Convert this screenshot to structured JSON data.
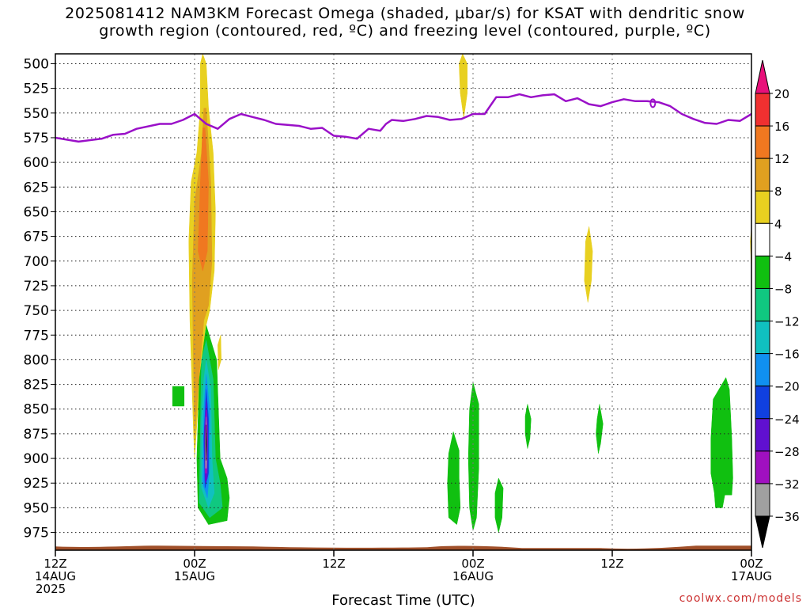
{
  "chart_data": {
    "type": "heatmap",
    "title_lines": [
      "2025081412 NAM3KM Forecast Omega (shaded, μbar/s) for KSAT with dendritic snow",
      "growth region (contoured, red, ºC) and freezing level (contoured, purple, ºC)"
    ],
    "xlabel": "Forecast Time (UTC)",
    "x_ticks": [
      {
        "t": 0,
        "lines": [
          "12Z",
          "14AUG",
          "2025"
        ]
      },
      {
        "t": 12,
        "lines": [
          "00Z",
          "15AUG"
        ]
      },
      {
        "t": 24,
        "lines": [
          "12Z"
        ]
      },
      {
        "t": 36,
        "lines": [
          "00Z",
          "16AUG"
        ]
      },
      {
        "t": 48,
        "lines": [
          "12Z"
        ]
      },
      {
        "t": 60,
        "lines": [
          "00Z",
          "17AUG"
        ]
      }
    ],
    "xlim": [
      0,
      60
    ],
    "x_units": "hours from 2025-08-14 12Z",
    "y_ticks": [
      500,
      525,
      550,
      575,
      600,
      625,
      650,
      675,
      700,
      725,
      750,
      775,
      800,
      825,
      850,
      875,
      900,
      925,
      950,
      975
    ],
    "ylim": [
      490,
      993
    ],
    "y_units": "hPa",
    "grid": "dotted",
    "colorbar": {
      "labels": [
        "20",
        "16",
        "12",
        "8",
        "4",
        "−4",
        "−8",
        "−12",
        "−16",
        "−20",
        "−24",
        "−28",
        "−32",
        "−36"
      ],
      "colors": [
        "#e8107a",
        "#f03030",
        "#f07820",
        "#e0a020",
        "#e8d020",
        "#ffffff",
        "#10c010",
        "#10c880",
        "#10c0c0",
        "#1090f0",
        "#1040e0",
        "#6010d0",
        "#a010c0",
        "#a0a0a0",
        "#000000"
      ]
    },
    "freezing_level": {
      "color": "#9a10c8",
      "points": [
        [
          0,
          575
        ],
        [
          2,
          579
        ],
        [
          4,
          576
        ],
        [
          5,
          572
        ],
        [
          6,
          571
        ],
        [
          7,
          566
        ],
        [
          9,
          561
        ],
        [
          10,
          561
        ],
        [
          11,
          557
        ],
        [
          12,
          551
        ],
        [
          13,
          561
        ],
        [
          14,
          566
        ],
        [
          15,
          556
        ],
        [
          16,
          551
        ],
        [
          17,
          554
        ],
        [
          18,
          557
        ],
        [
          19,
          561
        ],
        [
          21,
          563
        ],
        [
          22,
          566
        ],
        [
          23,
          565
        ],
        [
          24,
          573
        ],
        [
          25,
          574
        ],
        [
          26,
          576
        ],
        [
          27,
          566
        ],
        [
          28,
          568
        ],
        [
          28.5,
          561
        ],
        [
          29,
          557
        ],
        [
          30,
          558
        ],
        [
          31,
          556
        ],
        [
          32,
          553
        ],
        [
          33,
          554
        ],
        [
          34,
          557
        ],
        [
          35,
          556
        ],
        [
          36,
          551
        ],
        [
          37,
          551
        ],
        [
          38,
          534
        ],
        [
          39,
          534
        ],
        [
          40,
          531
        ],
        [
          41,
          534
        ],
        [
          42,
          532
        ],
        [
          43,
          531
        ],
        [
          44,
          538
        ],
        [
          45,
          535
        ],
        [
          46,
          541
        ],
        [
          47,
          543
        ],
        [
          48,
          539
        ],
        [
          49,
          536
        ],
        [
          50,
          538
        ],
        [
          51,
          538
        ],
        [
          52,
          539
        ],
        [
          53,
          543
        ],
        [
          54,
          551
        ],
        [
          55,
          556
        ],
        [
          56,
          560
        ],
        [
          57,
          561
        ],
        [
          58,
          557
        ],
        [
          59,
          558
        ],
        [
          60,
          551
        ],
        [
          61,
          548
        ]
      ]
    },
    "omega_regions": [
      {
        "level": "4",
        "color": "#e8d020",
        "points": [
          [
            12.7,
            490
          ],
          [
            13.0,
            500
          ],
          [
            13.2,
            545
          ],
          [
            13.6,
            590
          ],
          [
            13.8,
            650
          ],
          [
            13.7,
            710
          ],
          [
            13.3,
            750
          ],
          [
            12.9,
            770
          ],
          [
            12.4,
            830
          ],
          [
            12.0,
            900
          ],
          [
            11.9,
            870
          ],
          [
            11.6,
            760
          ],
          [
            11.5,
            680
          ],
          [
            11.7,
            620
          ],
          [
            12.2,
            590
          ],
          [
            12.5,
            545
          ],
          [
            12.5,
            500
          ]
        ]
      },
      {
        "level": "8",
        "color": "#e0a020",
        "points": [
          [
            13.0,
            545
          ],
          [
            13.4,
            620
          ],
          [
            13.5,
            700
          ],
          [
            13.2,
            745
          ],
          [
            12.8,
            760
          ],
          [
            12.3,
            830
          ],
          [
            12.0,
            880
          ],
          [
            11.9,
            800
          ],
          [
            11.8,
            720
          ],
          [
            12.0,
            640
          ],
          [
            12.6,
            590
          ],
          [
            12.8,
            545
          ]
        ]
      },
      {
        "level": "12",
        "color": "#f07820",
        "points": [
          [
            12.9,
            565
          ],
          [
            13.2,
            620
          ],
          [
            13.1,
            690
          ],
          [
            12.7,
            710
          ],
          [
            12.3,
            690
          ],
          [
            12.5,
            620
          ],
          [
            12.7,
            565
          ]
        ]
      },
      {
        "level": "4",
        "color": "#e8d020",
        "points": [
          [
            35.1,
            490
          ],
          [
            35.5,
            500
          ],
          [
            35.5,
            530
          ],
          [
            35.2,
            555
          ],
          [
            34.9,
            530
          ],
          [
            34.8,
            500
          ]
        ]
      },
      {
        "level": "4",
        "color": "#e8d020",
        "points": [
          [
            46.0,
            665
          ],
          [
            46.3,
            690
          ],
          [
            46.2,
            720
          ],
          [
            45.9,
            742
          ],
          [
            45.6,
            720
          ],
          [
            45.7,
            680
          ]
        ]
      },
      {
        "level": "4",
        "color": "#e8d020",
        "points": [
          [
            61,
            620
          ],
          [
            60.2,
            640
          ],
          [
            59.9,
            680
          ],
          [
            60.0,
            710
          ],
          [
            60.3,
            735
          ],
          [
            61,
            740
          ]
        ]
      },
      {
        "level": "4",
        "color": "#e8d020",
        "points": [
          [
            61,
            860
          ],
          [
            60.2,
            870
          ],
          [
            60.0,
            900
          ],
          [
            60.3,
            940
          ],
          [
            61,
            945
          ]
        ]
      },
      {
        "level": "4",
        "color": "#e8d020",
        "points": [
          [
            14.0,
            785
          ],
          [
            14.25,
            775
          ],
          [
            14.3,
            800
          ],
          [
            14.05,
            810
          ]
        ]
      },
      {
        "level": "-4",
        "color": "#10c010",
        "points": [
          [
            13.0,
            765
          ],
          [
            13.9,
            800
          ],
          [
            14.2,
            900
          ],
          [
            14.8,
            920
          ],
          [
            15.0,
            940
          ],
          [
            14.8,
            963
          ],
          [
            13.2,
            967
          ],
          [
            12.3,
            950
          ],
          [
            12.2,
            900
          ],
          [
            12.4,
            820
          ]
        ]
      },
      {
        "level": "-8",
        "color": "#10c880",
        "points": [
          [
            13.0,
            780
          ],
          [
            13.6,
            820
          ],
          [
            13.8,
            900
          ],
          [
            14.2,
            925
          ],
          [
            14.4,
            950
          ],
          [
            13.3,
            960
          ],
          [
            12.4,
            945
          ],
          [
            12.5,
            870
          ],
          [
            12.6,
            800
          ]
        ]
      },
      {
        "level": "-12",
        "color": "#10c0c0",
        "points": [
          [
            13.0,
            800
          ],
          [
            13.4,
            830
          ],
          [
            13.5,
            900
          ],
          [
            13.7,
            935
          ],
          [
            13.2,
            950
          ],
          [
            12.6,
            930
          ],
          [
            12.6,
            860
          ],
          [
            12.8,
            820
          ]
        ]
      },
      {
        "level": "-16",
        "color": "#1090f0",
        "points": [
          [
            13.0,
            815
          ],
          [
            13.3,
            850
          ],
          [
            13.3,
            910
          ],
          [
            13.1,
            940
          ],
          [
            12.7,
            925
          ],
          [
            12.8,
            850
          ]
        ]
      },
      {
        "level": "-20",
        "color": "#1040e0",
        "points": [
          [
            13.0,
            830
          ],
          [
            13.2,
            860
          ],
          [
            13.2,
            915
          ],
          [
            12.9,
            930
          ],
          [
            12.8,
            880
          ]
        ]
      },
      {
        "level": "-24",
        "color": "#6010d0",
        "points": [
          [
            13.0,
            840
          ],
          [
            13.15,
            870
          ],
          [
            13.1,
            920
          ],
          [
            12.9,
            925
          ],
          [
            12.85,
            870
          ]
        ]
      },
      {
        "level": "-28",
        "color": "#a010c0",
        "points": [
          [
            13.0,
            850
          ],
          [
            13.1,
            880
          ],
          [
            13.05,
            915
          ],
          [
            12.92,
            915
          ],
          [
            12.9,
            880
          ]
        ]
      },
      {
        "level": "-32",
        "color": "#a0a0a0",
        "points": [
          [
            13.0,
            858
          ],
          [
            13.05,
            885
          ],
          [
            13.02,
            910
          ],
          [
            12.95,
            910
          ],
          [
            12.93,
            885
          ]
        ]
      },
      {
        "level": "-36",
        "color": "#000000",
        "points": [
          [
            13.0,
            866
          ],
          [
            13.02,
            885
          ],
          [
            13.0,
            902
          ],
          [
            12.97,
            885
          ]
        ]
      },
      {
        "level": "-4",
        "color": "#10c010",
        "points": [
          [
            10.1,
            827
          ],
          [
            11.1,
            827
          ],
          [
            11.1,
            847
          ],
          [
            10.1,
            847
          ]
        ]
      },
      {
        "level": "-4",
        "color": "#10c010",
        "points": [
          [
            34.3,
            873
          ],
          [
            34.8,
            892
          ],
          [
            34.8,
            920
          ],
          [
            34.9,
            950
          ],
          [
            34.6,
            967
          ],
          [
            33.9,
            960
          ],
          [
            33.8,
            925
          ],
          [
            33.9,
            895
          ]
        ]
      },
      {
        "level": "-4",
        "color": "#10c010",
        "points": [
          [
            36.0,
            823
          ],
          [
            36.5,
            845
          ],
          [
            36.5,
            910
          ],
          [
            36.3,
            960
          ],
          [
            36.0,
            973
          ],
          [
            35.7,
            950
          ],
          [
            35.6,
            900
          ],
          [
            35.7,
            850
          ]
        ]
      },
      {
        "level": "-4",
        "color": "#10c010",
        "points": [
          [
            38.2,
            920
          ],
          [
            38.6,
            930
          ],
          [
            38.5,
            960
          ],
          [
            38.2,
            975
          ],
          [
            37.9,
            960
          ],
          [
            37.9,
            935
          ]
        ]
      },
      {
        "level": "-4",
        "color": "#10c010",
        "points": [
          [
            40.7,
            845
          ],
          [
            41.0,
            860
          ],
          [
            40.9,
            880
          ],
          [
            40.7,
            890
          ],
          [
            40.5,
            875
          ],
          [
            40.5,
            857
          ]
        ]
      },
      {
        "level": "-4",
        "color": "#10c010",
        "points": [
          [
            46.9,
            845
          ],
          [
            47.2,
            865
          ],
          [
            47.0,
            885
          ],
          [
            46.8,
            895
          ],
          [
            46.6,
            875
          ],
          [
            46.7,
            860
          ]
        ]
      },
      {
        "level": "-4",
        "color": "#10c010",
        "points": [
          [
            57.8,
            818
          ],
          [
            58.1,
            830
          ],
          [
            58.3,
            880
          ],
          [
            58.4,
            920
          ],
          [
            58.3,
            937
          ],
          [
            57.7,
            937
          ],
          [
            57.5,
            950
          ],
          [
            56.9,
            950
          ],
          [
            56.8,
            935
          ],
          [
            56.5,
            915
          ],
          [
            56.5,
            880
          ],
          [
            56.7,
            840
          ],
          [
            57.3,
            828
          ]
        ]
      }
    ],
    "terrain": {
      "color": "#a0502a",
      "base_hPa": 990
    }
  },
  "credit": "coolwx.com/models"
}
